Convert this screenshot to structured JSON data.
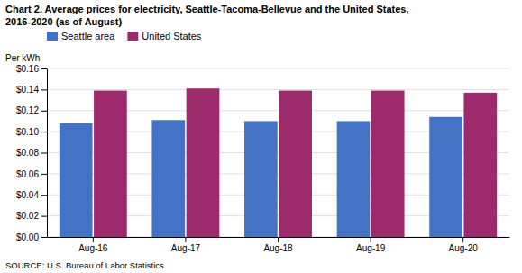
{
  "chart_data": {
    "type": "bar",
    "title": "Chart 2. Average prices for electricity, Seattle-Tacoma-Bellevue and the United States,",
    "subtitle": "2016-2020  (as of August)",
    "ylabel": "Per kWh",
    "annotations": [
      "SOURCE: U.S. Bureau of Labor Statistics."
    ],
    "categories": [
      "Aug-16",
      "Aug-17",
      "Aug-18",
      "Aug-19",
      "Aug-20"
    ],
    "series": [
      {
        "name": "Seattle area",
        "color": "#4472C4",
        "values": [
          0.108,
          0.111,
          0.11,
          0.11,
          0.114
        ]
      },
      {
        "name": "United States",
        "color": "#9E2A6E",
        "values": [
          0.139,
          0.141,
          0.139,
          0.139,
          0.137
        ]
      }
    ],
    "ylim": [
      0,
      0.16
    ],
    "yticks": [
      {
        "value": 0.0,
        "label": "$0.00"
      },
      {
        "value": 0.02,
        "label": "$0.02"
      },
      {
        "value": 0.04,
        "label": "$0.04"
      },
      {
        "value": 0.06,
        "label": "$0.06"
      },
      {
        "value": 0.08,
        "label": "$0.08"
      },
      {
        "value": 0.1,
        "label": "$0.10"
      },
      {
        "value": 0.12,
        "label": "$0.12"
      },
      {
        "value": 0.14,
        "label": "$0.14"
      },
      {
        "value": 0.16,
        "label": "$0.16"
      }
    ],
    "grid": true,
    "legend": "upper left"
  }
}
